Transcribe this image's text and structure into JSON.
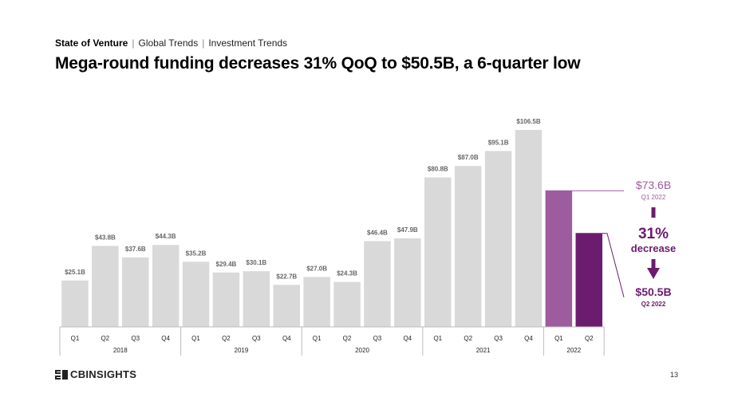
{
  "header": {
    "section": "State of Venture",
    "separator": "|",
    "crumb_1": "Global Trends",
    "crumb_2": "Investment Trends"
  },
  "title": "Mega-round funding decreases 31% QoQ to $50.5B, a 6-quarter low",
  "brand": {
    "logo_text": "CBINSIGHTS",
    "logo_icon": "cb-logo-icon"
  },
  "page_number": "13",
  "colors": {
    "bar_default": "#d9d9d9",
    "bar_prev_highlight": "#9c5c9e",
    "bar_highlight": "#6c1c6e",
    "callout_dark": "#6c1c6e",
    "callout_light": "#9c5c9e",
    "axis_text": "#222222",
    "label_text": "#666666"
  },
  "chart_data": {
    "type": "bar",
    "title": "Mega-round funding decreases 31% QoQ to $50.5B, a 6-quarter low",
    "ylabel": "",
    "xlabel": "",
    "ylim": [
      0,
      120
    ],
    "grid": false,
    "unit": "$B",
    "categories": [
      "Q1 2018",
      "Q2 2018",
      "Q3 2018",
      "Q4 2018",
      "Q1 2019",
      "Q2 2019",
      "Q3 2019",
      "Q4 2019",
      "Q1 2020",
      "Q2 2020",
      "Q3 2020",
      "Q4 2020",
      "Q1 2021",
      "Q2 2021",
      "Q3 2021",
      "Q4 2021",
      "Q1 2022",
      "Q2 2022"
    ],
    "quarter_labels": [
      "Q1",
      "Q2",
      "Q3",
      "Q4",
      "Q1",
      "Q2",
      "Q3",
      "Q4",
      "Q1",
      "Q2",
      "Q3",
      "Q4",
      "Q1",
      "Q2",
      "Q3",
      "Q4",
      "Q1",
      "Q2"
    ],
    "years": [
      {
        "label": "2018",
        "count": 4
      },
      {
        "label": "2019",
        "count": 4
      },
      {
        "label": "2020",
        "count": 4
      },
      {
        "label": "2021",
        "count": 4
      },
      {
        "label": "2022",
        "count": 2
      }
    ],
    "values": [
      25.1,
      43.8,
      37.6,
      44.3,
      35.2,
      29.4,
      30.1,
      22.7,
      27.0,
      24.3,
      46.4,
      47.9,
      80.8,
      87.0,
      95.1,
      106.5,
      73.6,
      50.5
    ],
    "value_labels": [
      "$25.1B",
      "$43.8B",
      "$37.6B",
      "$44.3B",
      "$35.2B",
      "$29.4B",
      "$30.1B",
      "$22.7B",
      "$27.0B",
      "$24.3B",
      "$46.4B",
      "$47.9B",
      "$80.8B",
      "$87.0B",
      "$95.1B",
      "$106.5B",
      "",
      ""
    ],
    "highlight": {
      "prev_index": 16,
      "curr_index": 17
    },
    "annotation": {
      "prev_value": "$73.6B",
      "prev_period": "Q1 2022",
      "change_pct": "31%",
      "change_word": "decrease",
      "curr_value": "$50.5B",
      "curr_period": "Q2 2022"
    }
  }
}
